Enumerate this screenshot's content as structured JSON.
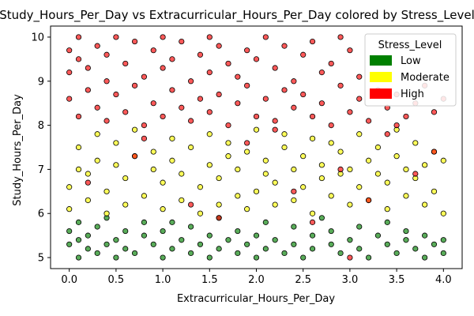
{
  "chart_data": {
    "type": "scatter",
    "title": "Study_Hours_Per_Day vs Extracurricular_Hours_Per_Day colored by Stress_Level",
    "xlabel": "Extracurricular_Hours_Per_Day",
    "ylabel": "Study_Hours_Per_Day",
    "xlim": [
      -0.2,
      4.2
    ],
    "ylim": [
      4.75,
      10.25
    ],
    "xticks": [
      0.0,
      0.5,
      1.0,
      1.5,
      2.0,
      2.5,
      3.0,
      3.5,
      4.0
    ],
    "xtick_labels": [
      "0.0",
      "0.5",
      "1.0",
      "1.5",
      "2.0",
      "2.5",
      "3.0",
      "3.5",
      "4.0"
    ],
    "yticks": [
      5,
      6,
      7,
      8,
      9,
      10
    ],
    "ytick_labels": [
      "5",
      "6",
      "7",
      "8",
      "9",
      "10"
    ],
    "grid": false,
    "legend": {
      "title": "Stress_Level",
      "placement": "top-right",
      "entries": [
        {
          "label": "Low",
          "color": "#008000"
        },
        {
          "label": "Moderate",
          "color": "#ffff00"
        },
        {
          "label": "High",
          "color": "#ff0000"
        }
      ]
    },
    "series": [
      {
        "name": "Low",
        "color": "#008000",
        "alpha": 0.65,
        "points": [
          [
            0.0,
            5.3
          ],
          [
            0.0,
            5.6
          ],
          [
            0.1,
            5.0
          ],
          [
            0.1,
            5.4
          ],
          [
            0.1,
            5.8
          ],
          [
            0.2,
            5.2
          ],
          [
            0.2,
            5.5
          ],
          [
            0.3,
            5.1
          ],
          [
            0.3,
            5.7
          ],
          [
            0.4,
            5.3
          ],
          [
            0.4,
            5.9
          ],
          [
            0.5,
            5.0
          ],
          [
            0.5,
            5.4
          ],
          [
            0.6,
            5.2
          ],
          [
            0.6,
            5.6
          ],
          [
            0.7,
            5.1
          ],
          [
            0.8,
            5.5
          ],
          [
            0.8,
            5.8
          ],
          [
            0.9,
            5.3
          ],
          [
            1.0,
            5.0
          ],
          [
            1.0,
            5.6
          ],
          [
            1.1,
            5.2
          ],
          [
            1.1,
            5.8
          ],
          [
            1.2,
            5.4
          ],
          [
            1.3,
            5.1
          ],
          [
            1.3,
            5.7
          ],
          [
            1.4,
            5.3
          ],
          [
            1.5,
            5.0
          ],
          [
            1.5,
            5.5
          ],
          [
            1.6,
            5.2
          ],
          [
            1.6,
            5.9
          ],
          [
            1.7,
            5.4
          ],
          [
            1.8,
            5.1
          ],
          [
            1.8,
            5.6
          ],
          [
            1.9,
            5.3
          ],
          [
            2.0,
            5.0
          ],
          [
            2.0,
            5.5
          ],
          [
            2.1,
            5.2
          ],
          [
            2.1,
            5.8
          ],
          [
            2.2,
            5.4
          ],
          [
            2.3,
            5.1
          ],
          [
            2.4,
            5.3
          ],
          [
            2.4,
            5.7
          ],
          [
            2.5,
            5.0
          ],
          [
            2.6,
            5.5
          ],
          [
            2.6,
            5.2
          ],
          [
            2.7,
            5.9
          ],
          [
            2.8,
            5.3
          ],
          [
            2.8,
            5.6
          ],
          [
            2.9,
            5.1
          ],
          [
            3.0,
            5.4
          ],
          [
            3.1,
            5.2
          ],
          [
            3.1,
            5.7
          ],
          [
            3.2,
            5.0
          ],
          [
            3.3,
            5.5
          ],
          [
            3.4,
            5.3
          ],
          [
            3.4,
            5.8
          ],
          [
            3.5,
            5.1
          ],
          [
            3.6,
            5.4
          ],
          [
            3.6,
            5.6
          ],
          [
            3.7,
            5.2
          ],
          [
            3.8,
            5.0
          ],
          [
            3.8,
            5.5
          ],
          [
            3.9,
            5.3
          ],
          [
            4.0,
            5.1
          ],
          [
            4.0,
            5.4
          ]
        ]
      },
      {
        "name": "Moderate",
        "color": "#ffff00",
        "alpha": 0.65,
        "points": [
          [
            0.0,
            6.1
          ],
          [
            0.0,
            6.6
          ],
          [
            0.1,
            7.0
          ],
          [
            0.1,
            7.5
          ],
          [
            0.2,
            6.3
          ],
          [
            0.2,
            6.9
          ],
          [
            0.3,
            7.2
          ],
          [
            0.3,
            7.8
          ],
          [
            0.4,
            6.0
          ],
          [
            0.4,
            6.5
          ],
          [
            0.5,
            7.1
          ],
          [
            0.5,
            7.6
          ],
          [
            0.6,
            6.2
          ],
          [
            0.6,
            6.8
          ],
          [
            0.7,
            7.3
          ],
          [
            0.7,
            7.9
          ],
          [
            0.8,
            6.4
          ],
          [
            0.9,
            7.0
          ],
          [
            0.9,
            7.4
          ],
          [
            1.0,
            6.1
          ],
          [
            1.0,
            6.7
          ],
          [
            1.1,
            7.2
          ],
          [
            1.1,
            7.7
          ],
          [
            1.2,
            6.3
          ],
          [
            1.2,
            6.9
          ],
          [
            1.3,
            7.5
          ],
          [
            1.4,
            6.0
          ],
          [
            1.4,
            6.6
          ],
          [
            1.5,
            7.1
          ],
          [
            1.5,
            7.8
          ],
          [
            1.6,
            6.2
          ],
          [
            1.6,
            6.8
          ],
          [
            1.7,
            7.3
          ],
          [
            1.7,
            7.6
          ],
          [
            1.8,
            6.4
          ],
          [
            1.8,
            7.0
          ],
          [
            1.9,
            6.1
          ],
          [
            1.9,
            7.4
          ],
          [
            2.0,
            6.5
          ],
          [
            2.0,
            7.9
          ],
          [
            2.1,
            6.9
          ],
          [
            2.1,
            7.2
          ],
          [
            2.2,
            6.2
          ],
          [
            2.2,
            6.7
          ],
          [
            2.3,
            7.5
          ],
          [
            2.3,
            7.8
          ],
          [
            2.4,
            6.3
          ],
          [
            2.4,
            7.0
          ],
          [
            2.5,
            6.6
          ],
          [
            2.5,
            7.3
          ],
          [
            2.6,
            6.0
          ],
          [
            2.6,
            7.7
          ],
          [
            2.7,
            6.8
          ],
          [
            2.7,
            7.1
          ],
          [
            2.8,
            6.4
          ],
          [
            2.8,
            7.6
          ],
          [
            2.9,
            6.9
          ],
          [
            2.9,
            7.4
          ],
          [
            3.0,
            6.2
          ],
          [
            3.0,
            7.0
          ],
          [
            3.1,
            6.6
          ],
          [
            3.1,
            7.8
          ],
          [
            3.2,
            6.3
          ],
          [
            3.2,
            7.2
          ],
          [
            3.3,
            6.9
          ],
          [
            3.3,
            7.5
          ],
          [
            3.4,
            6.1
          ],
          [
            3.4,
            6.7
          ],
          [
            3.5,
            7.3
          ],
          [
            3.5,
            7.9
          ],
          [
            3.6,
            6.4
          ],
          [
            3.6,
            7.0
          ],
          [
            3.7,
            6.8
          ],
          [
            3.7,
            7.6
          ],
          [
            3.8,
            6.2
          ],
          [
            3.8,
            7.1
          ],
          [
            3.9,
            6.5
          ],
          [
            3.9,
            7.4
          ],
          [
            4.0,
            6.0
          ],
          [
            4.0,
            7.2
          ]
        ]
      },
      {
        "name": "High",
        "color": "#ff0000",
        "alpha": 0.65,
        "points": [
          [
            0.0,
            8.6
          ],
          [
            0.0,
            9.2
          ],
          [
            0.0,
            9.7
          ],
          [
            0.1,
            8.2
          ],
          [
            0.1,
            9.5
          ],
          [
            0.1,
            10.0
          ],
          [
            0.2,
            8.8
          ],
          [
            0.2,
            9.3
          ],
          [
            0.3,
            8.4
          ],
          [
            0.3,
            9.8
          ],
          [
            0.4,
            8.1
          ],
          [
            0.4,
            9.0
          ],
          [
            0.4,
            9.6
          ],
          [
            0.5,
            8.7
          ],
          [
            0.5,
            10.0
          ],
          [
            0.6,
            8.3
          ],
          [
            0.6,
            9.4
          ],
          [
            0.7,
            8.9
          ],
          [
            0.7,
            9.9
          ],
          [
            0.8,
            8.0
          ],
          [
            0.8,
            9.1
          ],
          [
            0.9,
            8.5
          ],
          [
            0.9,
            9.7
          ],
          [
            1.0,
            8.2
          ],
          [
            1.0,
            9.3
          ],
          [
            1.0,
            10.0
          ],
          [
            1.1,
            8.8
          ],
          [
            1.1,
            9.5
          ],
          [
            1.2,
            8.4
          ],
          [
            1.2,
            9.9
          ],
          [
            1.3,
            8.1
          ],
          [
            1.3,
            9.0
          ],
          [
            1.4,
            8.6
          ],
          [
            1.4,
            9.6
          ],
          [
            1.5,
            8.3
          ],
          [
            1.5,
            9.2
          ],
          [
            1.5,
            10.0
          ],
          [
            1.6,
            8.7
          ],
          [
            1.6,
            9.8
          ],
          [
            1.7,
            8.0
          ],
          [
            1.7,
            9.4
          ],
          [
            1.8,
            8.5
          ],
          [
            1.8,
            9.1
          ],
          [
            1.9,
            8.9
          ],
          [
            1.9,
            9.7
          ],
          [
            2.0,
            8.2
          ],
          [
            2.0,
            9.5
          ],
          [
            2.1,
            8.6
          ],
          [
            2.1,
            10.0
          ],
          [
            2.2,
            8.1
          ],
          [
            2.2,
            9.3
          ],
          [
            2.3,
            8.8
          ],
          [
            2.3,
            9.8
          ],
          [
            2.4,
            8.4
          ],
          [
            2.4,
            9.0
          ],
          [
            2.5,
            8.7
          ],
          [
            2.5,
            9.6
          ],
          [
            2.6,
            8.2
          ],
          [
            2.6,
            9.9
          ],
          [
            2.7,
            8.5
          ],
          [
            2.7,
            9.2
          ],
          [
            2.8,
            8.0
          ],
          [
            2.8,
            9.4
          ],
          [
            2.9,
            8.9
          ],
          [
            2.9,
            10.0
          ],
          [
            3.0,
            8.3
          ],
          [
            3.0,
            9.7
          ],
          [
            3.1,
            8.6
          ],
          [
            3.1,
            9.1
          ],
          [
            3.2,
            8.1
          ],
          [
            3.3,
            8.8
          ],
          [
            3.3,
            9.5
          ],
          [
            3.4,
            8.4
          ],
          [
            3.5,
            8.0
          ],
          [
            3.5,
            8.7
          ],
          [
            3.6,
            8.2
          ],
          [
            3.7,
            8.5
          ],
          [
            3.8,
            8.9
          ],
          [
            3.9,
            8.3
          ],
          [
            4.0,
            8.6
          ],
          [
            0.2,
            6.7
          ],
          [
            0.7,
            7.3
          ],
          [
            1.3,
            6.2
          ],
          [
            1.9,
            7.6
          ],
          [
            2.4,
            6.5
          ],
          [
            2.9,
            7.0
          ],
          [
            3.4,
            7.8
          ],
          [
            3.7,
            6.9
          ],
          [
            3.9,
            7.4
          ],
          [
            1.6,
            5.9
          ],
          [
            0.8,
            7.7
          ],
          [
            2.2,
            7.9
          ],
          [
            3.2,
            6.3
          ],
          [
            2.6,
            5.8
          ],
          [
            3.0,
            5.0
          ]
        ]
      }
    ]
  }
}
